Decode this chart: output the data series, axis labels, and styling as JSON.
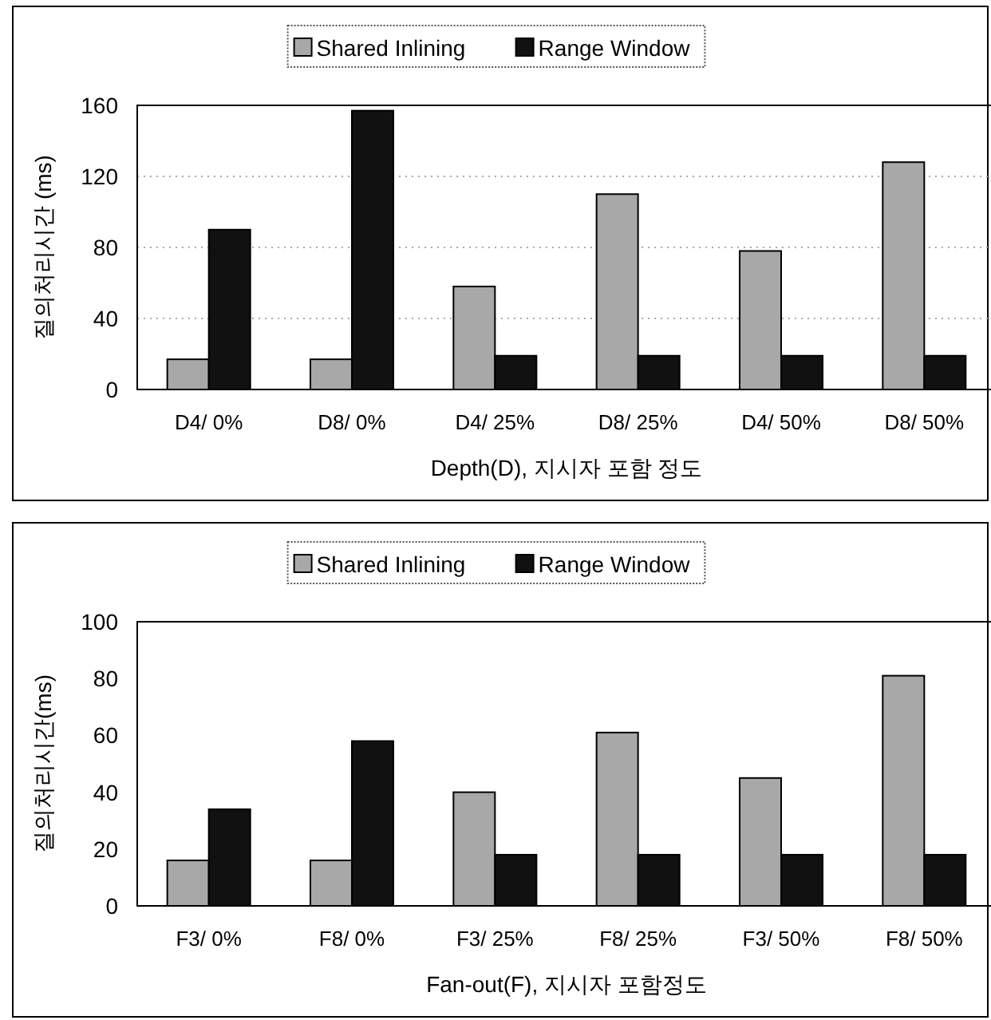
{
  "chart_data": [
    {
      "type": "bar",
      "categories": [
        "D4/ 0%",
        "D8/ 0%",
        "D4/ 25%",
        "D8/ 25%",
        "D4/ 50%",
        "D8/ 50%"
      ],
      "xlabel": "Depth(D), 지시자 포함 정도",
      "ylabel": "질의처리시간 (ms)",
      "ylim": [
        0,
        160
      ],
      "yticks": [
        0,
        40,
        80,
        120,
        160
      ],
      "grid": "y",
      "legend": "top",
      "series": [
        {
          "name": "Shared Inlining",
          "color": "#a8a8a8",
          "values": [
            17,
            17,
            58,
            110,
            78,
            128
          ]
        },
        {
          "name": "Range Window",
          "color": "#111111",
          "values": [
            90,
            157,
            19,
            19,
            19,
            19
          ]
        }
      ]
    },
    {
      "type": "bar",
      "categories": [
        "F3/ 0%",
        "F8/ 0%",
        "F3/ 25%",
        "F8/ 25%",
        "F3/ 50%",
        "F8/ 50%"
      ],
      "xlabel": "Fan-out(F), 지시자 포함정도",
      "ylabel": "질의처리시간(ms)",
      "ylim": [
        0,
        100
      ],
      "yticks": [
        0,
        20,
        40,
        60,
        80,
        100
      ],
      "legend": "top",
      "series": [
        {
          "name": "Shared Inlining",
          "color": "#a8a8a8",
          "values": [
            16,
            16,
            40,
            61,
            45,
            81
          ]
        },
        {
          "name": "Range Window",
          "color": "#111111",
          "values": [
            34,
            58,
            18,
            18,
            18,
            18
          ]
        }
      ]
    }
  ]
}
